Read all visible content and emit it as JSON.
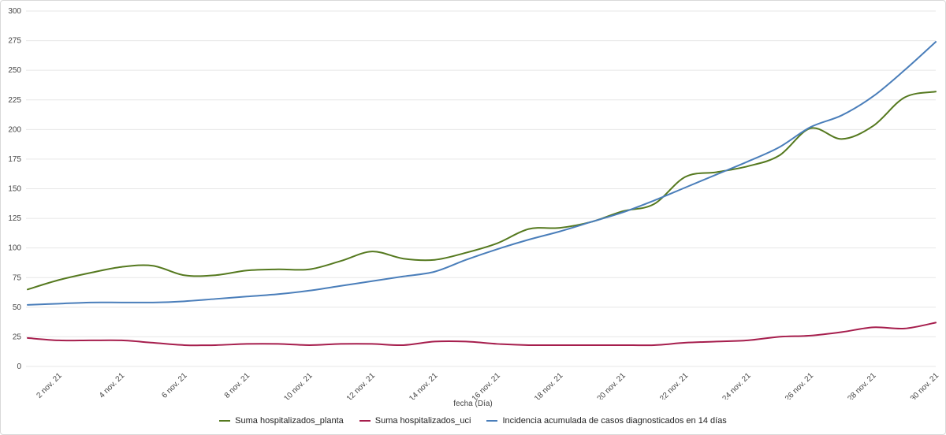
{
  "chart": {
    "grid_color": "#e7e7e7",
    "tick_color": "#454545",
    "background": "#ffffff"
  },
  "chart_data": {
    "type": "line",
    "title": "",
    "xlabel": "fecha (Día)",
    "ylabel": "",
    "ylim": [
      0,
      300
    ],
    "y_ticks": [
      0,
      25,
      50,
      75,
      100,
      125,
      150,
      175,
      200,
      225,
      250,
      275,
      300
    ],
    "x": [
      1,
      2,
      3,
      4,
      5,
      6,
      7,
      8,
      9,
      10,
      11,
      12,
      13,
      14,
      15,
      16,
      17,
      18,
      19,
      20,
      21,
      22,
      23,
      24,
      25,
      26,
      27,
      28,
      29,
      30
    ],
    "x_ticks": [
      {
        "day": 2,
        "label": "2 nov. 21"
      },
      {
        "day": 4,
        "label": "4 nov. 21"
      },
      {
        "day": 6,
        "label": "6 nov. 21"
      },
      {
        "day": 8,
        "label": "8 nov. 21"
      },
      {
        "day": 10,
        "label": "10 nov. 21"
      },
      {
        "day": 12,
        "label": "12 nov. 21"
      },
      {
        "day": 14,
        "label": "14 nov. 21"
      },
      {
        "day": 16,
        "label": "16 nov. 21"
      },
      {
        "day": 18,
        "label": "18 nov. 21"
      },
      {
        "day": 20,
        "label": "20 nov. 21"
      },
      {
        "day": 22,
        "label": "22 nov. 21"
      },
      {
        "day": 24,
        "label": "24 nov. 21"
      },
      {
        "day": 26,
        "label": "26 nov. 21"
      },
      {
        "day": 28,
        "label": "28 nov. 21"
      },
      {
        "day": 30,
        "label": "30 nov. 21"
      }
    ],
    "series": [
      {
        "key": "planta",
        "name": "Suma hospitalizados_planta",
        "color": "#55791f",
        "values": [
          65,
          73,
          79,
          84,
          85,
          77,
          77,
          81,
          82,
          82,
          89,
          97,
          91,
          90,
          96,
          104,
          116,
          117,
          122,
          131,
          137,
          160,
          164,
          169,
          178,
          201,
          192,
          203,
          227,
          232
        ]
      },
      {
        "key": "uci",
        "name": "Suma hospitalizados_uci",
        "color": "#a61e4d",
        "values": [
          24,
          22,
          22,
          22,
          20,
          18,
          18,
          19,
          19,
          18,
          19,
          19,
          18,
          21,
          21,
          19,
          18,
          18,
          18,
          18,
          18,
          20,
          21,
          22,
          25,
          26,
          29,
          33,
          32,
          37
        ]
      },
      {
        "key": "incidencia",
        "name": "Incidencia acumulada de casos diagnosticados en 14 días",
        "color": "#4a7eba",
        "values": [
          52,
          53,
          54,
          54,
          54,
          55,
          57,
          59,
          61,
          64,
          68,
          72,
          76,
          80,
          90,
          99,
          107,
          114,
          122,
          130,
          140,
          151,
          162,
          173,
          185,
          202,
          212,
          228,
          250,
          274
        ]
      }
    ],
    "legend_position": "bottom",
    "grid": "horizontal-only"
  }
}
